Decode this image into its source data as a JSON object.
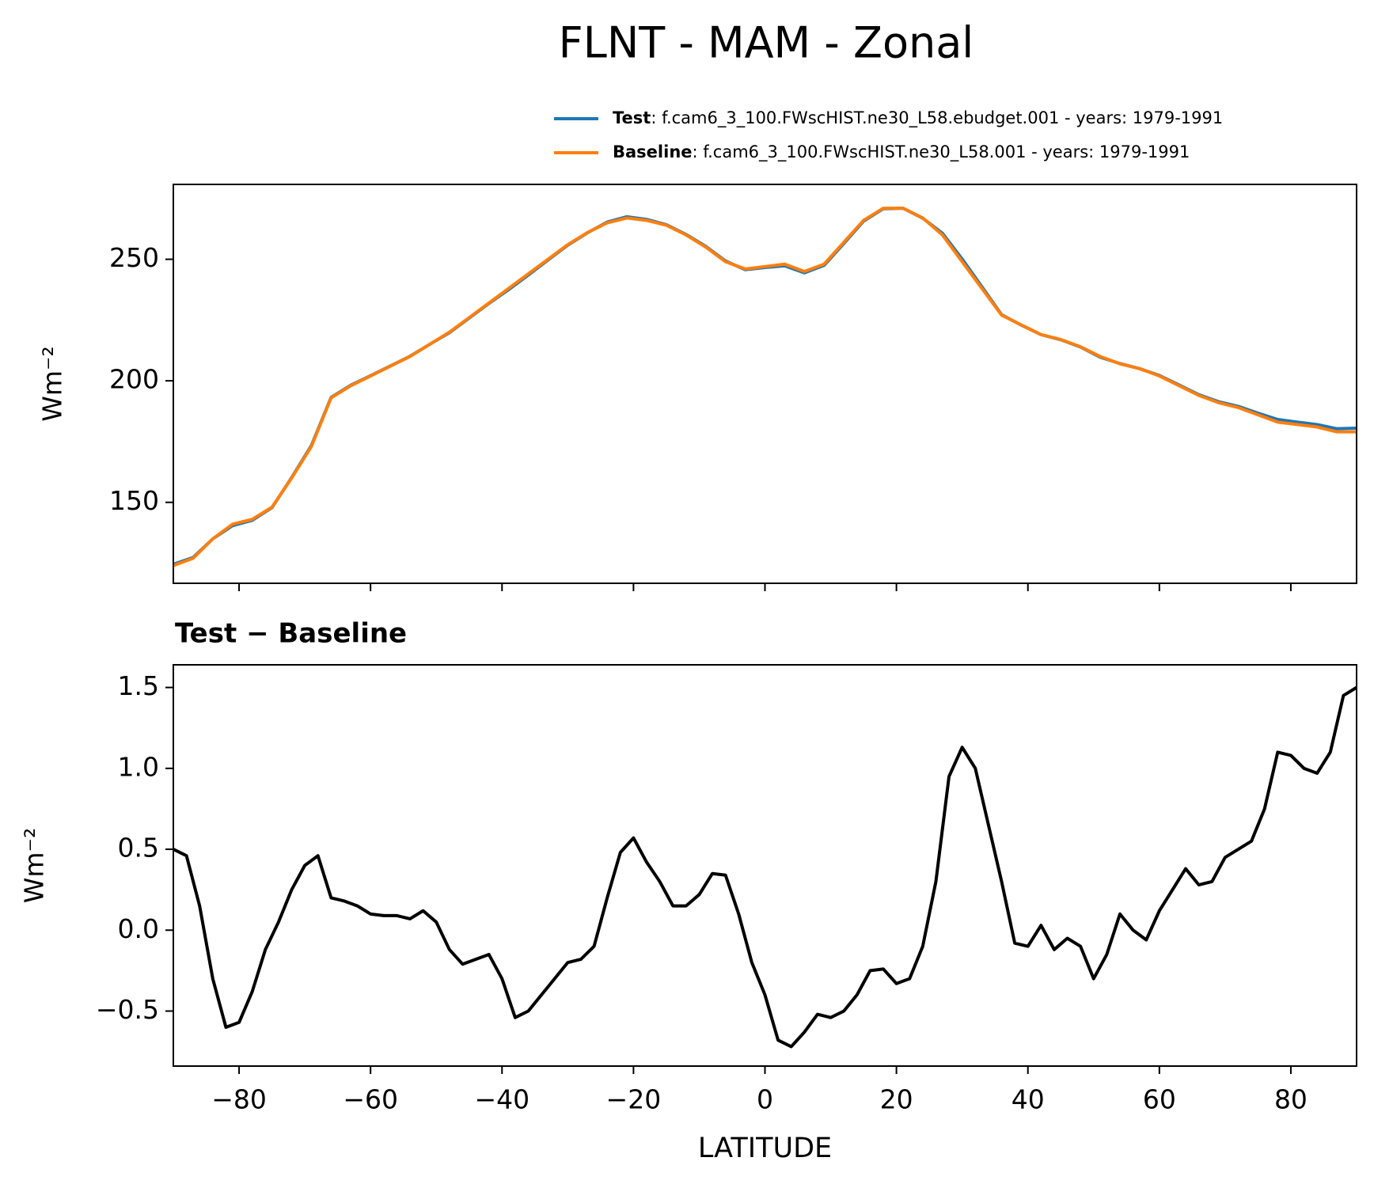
{
  "title": "FLNT - MAM - Zonal",
  "chart_data": [
    {
      "type": "line",
      "ylabel": "Wm⁻²",
      "x": [
        -90,
        -87,
        -84,
        -81,
        -78,
        -75,
        -72,
        -69,
        -66,
        -63,
        -60,
        -57,
        -54,
        -51,
        -48,
        -45,
        -42,
        -39,
        -36,
        -33,
        -30,
        -27,
        -24,
        -21,
        -18,
        -15,
        -12,
        -9,
        -6,
        -3,
        0,
        3,
        6,
        9,
        12,
        15,
        18,
        21,
        24,
        27,
        30,
        33,
        36,
        39,
        42,
        45,
        48,
        51,
        54,
        57,
        60,
        63,
        66,
        69,
        72,
        75,
        78,
        81,
        84,
        87,
        90
      ],
      "series": [
        {
          "name": "Test",
          "description": ": f.cam6_3_100.FWscHIST.ne30_L58.ebudget.001 - years: 1979-1991",
          "color": "#1f77b4",
          "values": [
            124.5,
            127.3,
            135.0,
            140.4,
            142.6,
            147.8,
            160.2,
            173.4,
            193.2,
            198.2,
            202.1,
            206.1,
            210.1,
            215.0,
            219.8,
            225.8,
            231.8,
            237.5,
            243.5,
            249.7,
            255.8,
            260.9,
            265.3,
            267.5,
            266.4,
            264.2,
            260.2,
            255.3,
            249.3,
            245.7,
            246.6,
            247.3,
            244.4,
            247.5,
            256.5,
            265.7,
            270.8,
            271.0,
            266.9,
            260.7,
            250.1,
            238.7,
            227.2,
            222.9,
            219.0,
            216.9,
            213.9,
            209.7,
            207.1,
            205.0,
            202.2,
            198.3,
            194.3,
            191.4,
            189.5,
            186.7,
            184.1,
            183.0,
            182.0,
            180.3,
            180.5
          ]
        },
        {
          "name": "Baseline",
          "description": ": f.cam6_3_100.FWscHIST.ne30_L58.001 - years: 1979-1991",
          "color": "#ff7f0e",
          "values": [
            124,
            127,
            135,
            141,
            143,
            148,
            160,
            173,
            193,
            198,
            202,
            206,
            210,
            215,
            220,
            226,
            232,
            238,
            244,
            250,
            256,
            261,
            265,
            267,
            266,
            264,
            260,
            255,
            249,
            246,
            247,
            248,
            245,
            248,
            257,
            266,
            271,
            271,
            267,
            260,
            249,
            238,
            227,
            223,
            219,
            217,
            214,
            210,
            207,
            205,
            202,
            198,
            194,
            191,
            189,
            186,
            183,
            182,
            181,
            179,
            179
          ]
        }
      ],
      "xlim": [
        -90,
        90
      ],
      "xticks": [
        -80,
        -60,
        -40,
        -20,
        0,
        20,
        40,
        60,
        80
      ],
      "ylim": [
        116.7,
        280.8
      ],
      "yticks": [
        150,
        200,
        250
      ]
    },
    {
      "type": "line",
      "title": "Test − Baseline",
      "xlabel": "LATITUDE",
      "ylabel": "Wm⁻²",
      "x": [
        -90,
        -88,
        -86,
        -84,
        -82,
        -80,
        -78,
        -76,
        -74,
        -72,
        -70,
        -68,
        -66,
        -64,
        -62,
        -60,
        -58,
        -56,
        -54,
        -52,
        -50,
        -48,
        -46,
        -44,
        -42,
        -40,
        -38,
        -36,
        -34,
        -32,
        -30,
        -28,
        -26,
        -24,
        -22,
        -20,
        -18,
        -16,
        -14,
        -12,
        -10,
        -8,
        -6,
        -4,
        -2,
        0,
        2,
        4,
        6,
        8,
        10,
        12,
        14,
        16,
        18,
        20,
        22,
        24,
        26,
        28,
        30,
        32,
        34,
        36,
        38,
        40,
        42,
        44,
        46,
        48,
        50,
        52,
        54,
        56,
        58,
        60,
        62,
        64,
        66,
        68,
        70,
        72,
        74,
        76,
        78,
        80,
        82,
        84,
        86,
        88,
        90
      ],
      "series": [
        {
          "name": "Test − Baseline",
          "color": "#000000",
          "values": [
            0.5,
            0.46,
            0.15,
            -0.3,
            -0.6,
            -0.57,
            -0.38,
            -0.12,
            0.05,
            0.25,
            0.4,
            0.46,
            0.2,
            0.18,
            0.15,
            0.1,
            0.09,
            0.09,
            0.07,
            0.12,
            0.05,
            -0.12,
            -0.21,
            -0.18,
            -0.15,
            -0.3,
            -0.54,
            -0.5,
            -0.4,
            -0.3,
            -0.2,
            -0.18,
            -0.1,
            0.2,
            0.48,
            0.57,
            0.42,
            0.3,
            0.15,
            0.15,
            0.22,
            0.35,
            0.34,
            0.1,
            -0.2,
            -0.4,
            -0.68,
            -0.72,
            -0.63,
            -0.52,
            -0.54,
            -0.5,
            -0.4,
            -0.25,
            -0.24,
            -0.33,
            -0.3,
            -0.1,
            0.3,
            0.95,
            1.13,
            1.0,
            0.65,
            0.3,
            -0.08,
            -0.1,
            0.03,
            -0.12,
            -0.05,
            -0.1,
            -0.3,
            -0.15,
            0.1,
            0.0,
            -0.06,
            0.12,
            0.25,
            0.38,
            0.28,
            0.3,
            0.45,
            0.5,
            0.55,
            0.75,
            1.1,
            1.08,
            1.0,
            0.97,
            1.1,
            1.45,
            1.5
          ]
        }
      ],
      "xlim": [
        -90,
        90
      ],
      "xticks": [
        {
          "value": -80,
          "label": "−80"
        },
        {
          "value": -60,
          "label": "−60"
        },
        {
          "value": -40,
          "label": "−40"
        },
        {
          "value": -20,
          "label": "−20"
        },
        0,
        20,
        40,
        60,
        80
      ],
      "ylim": [
        -0.84,
        1.64
      ],
      "yticks": [
        {
          "value": -0.5,
          "label": "−0.5"
        },
        {
          "value": 0,
          "label": "0.0"
        },
        {
          "value": 0.5,
          "label": "0.5"
        },
        {
          "value": 1,
          "label": "1.0"
        },
        {
          "value": 1.5,
          "label": "1.5"
        }
      ]
    }
  ]
}
